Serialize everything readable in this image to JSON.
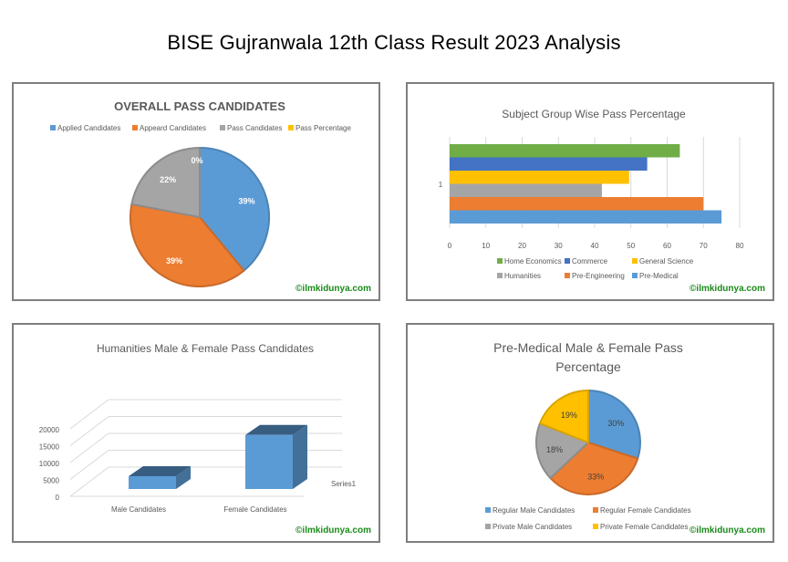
{
  "page": {
    "title": "BISE Gujranwala 12th Class Result 2023 Analysis"
  },
  "watermark": "©ilmkidunya.com",
  "chart_data": [
    {
      "id": "overall",
      "type": "pie",
      "title": "OVERALL PASS CANDIDATES",
      "labels": [
        "Applied Candidates",
        "Appeard Candidates",
        "Pass Candidates",
        "Pass Percentage"
      ],
      "values": [
        39,
        39,
        22,
        0
      ],
      "value_labels": [
        "39%",
        "39%",
        "22%",
        "0%"
      ],
      "colors": [
        "#5b9bd5",
        "#ed7d31",
        "#a5a5a5",
        "#ffc000"
      ],
      "legend": "top"
    },
    {
      "id": "subject",
      "type": "bar",
      "orientation": "horizontal",
      "title": "Subject Group Wise Pass Percentage",
      "categories": [
        "1"
      ],
      "series": [
        {
          "name": "Home Economics",
          "values": [
            63.5
          ],
          "color": "#70ad47"
        },
        {
          "name": "Commerce",
          "values": [
            54.5
          ],
          "color": "#4472c4"
        },
        {
          "name": "General Science",
          "values": [
            49.5
          ],
          "color": "#ffc000"
        },
        {
          "name": "Humanities",
          "values": [
            42
          ],
          "color": "#a5a5a5"
        },
        {
          "name": "Pre-Engineering",
          "values": [
            70
          ],
          "color": "#ed7d31"
        },
        {
          "name": "Pre-Medical",
          "values": [
            75
          ],
          "color": "#5b9bd5"
        }
      ],
      "xlim": [
        0,
        80
      ],
      "ticks": [
        "0",
        "10",
        "20",
        "30",
        "40",
        "50",
        "60",
        "70",
        "80"
      ],
      "grid": true,
      "legend": "bottom"
    },
    {
      "id": "humanities",
      "type": "bar",
      "style": "3d-column",
      "title": "Humanities Male & Female Pass Candidates",
      "categories": [
        "Male Candidates",
        "Female Candidates"
      ],
      "series": [
        {
          "name": "Series1",
          "values": [
            3800,
            16000
          ]
        }
      ],
      "ylim": [
        0,
        20000
      ],
      "ticks": [
        "0",
        "5000",
        "10000",
        "15000",
        "20000"
      ],
      "color": "#5b9bd5",
      "grid": true
    },
    {
      "id": "premed",
      "type": "pie",
      "title": "Pre-Medical Male & Female Pass Percentage",
      "title_lines": [
        "Pre-Medical Male & Female Pass",
        "Percentage"
      ],
      "labels": [
        "Regular Male Candidates",
        "Regular Female Candidates",
        "Private Male Candidates",
        "Private Female Candidates"
      ],
      "values": [
        30,
        33,
        18,
        19
      ],
      "value_labels": [
        "30%",
        "33%",
        "18%",
        "19%"
      ],
      "colors": [
        "#5b9bd5",
        "#ed7d31",
        "#a5a5a5",
        "#ffc000"
      ],
      "legend": "bottom"
    }
  ]
}
